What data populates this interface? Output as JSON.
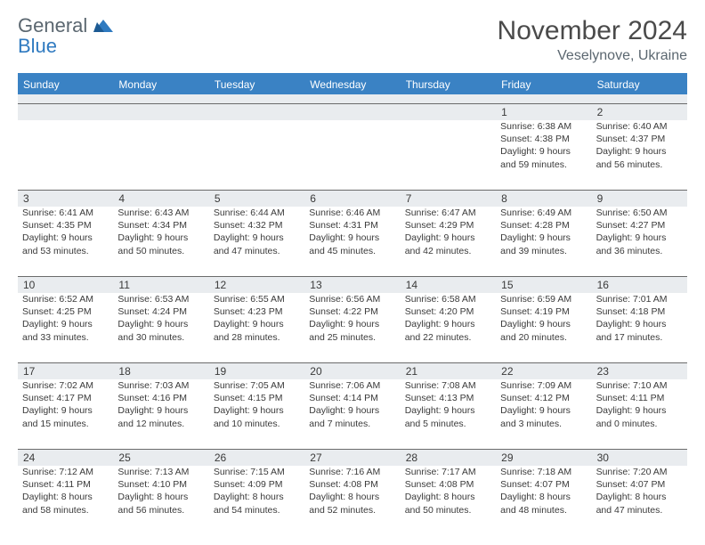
{
  "logo": {
    "word1": "General",
    "word2": "Blue"
  },
  "title": "November 2024",
  "location": "Veselynove, Ukraine",
  "weekdays": [
    "Sunday",
    "Monday",
    "Tuesday",
    "Wednesday",
    "Thursday",
    "Friday",
    "Saturday"
  ],
  "colors": {
    "header_bg": "#3a82c4",
    "daynum_bg": "#e9ecef",
    "text": "#3a3a3a",
    "logo_gray": "#5b6770",
    "logo_blue": "#2f7ac0"
  },
  "weeks": [
    [
      {
        "n": "",
        "lines": []
      },
      {
        "n": "",
        "lines": []
      },
      {
        "n": "",
        "lines": []
      },
      {
        "n": "",
        "lines": []
      },
      {
        "n": "",
        "lines": []
      },
      {
        "n": "1",
        "lines": [
          "Sunrise: 6:38 AM",
          "Sunset: 4:38 PM",
          "Daylight: 9 hours",
          "and 59 minutes."
        ]
      },
      {
        "n": "2",
        "lines": [
          "Sunrise: 6:40 AM",
          "Sunset: 4:37 PM",
          "Daylight: 9 hours",
          "and 56 minutes."
        ]
      }
    ],
    [
      {
        "n": "3",
        "lines": [
          "Sunrise: 6:41 AM",
          "Sunset: 4:35 PM",
          "Daylight: 9 hours",
          "and 53 minutes."
        ]
      },
      {
        "n": "4",
        "lines": [
          "Sunrise: 6:43 AM",
          "Sunset: 4:34 PM",
          "Daylight: 9 hours",
          "and 50 minutes."
        ]
      },
      {
        "n": "5",
        "lines": [
          "Sunrise: 6:44 AM",
          "Sunset: 4:32 PM",
          "Daylight: 9 hours",
          "and 47 minutes."
        ]
      },
      {
        "n": "6",
        "lines": [
          "Sunrise: 6:46 AM",
          "Sunset: 4:31 PM",
          "Daylight: 9 hours",
          "and 45 minutes."
        ]
      },
      {
        "n": "7",
        "lines": [
          "Sunrise: 6:47 AM",
          "Sunset: 4:29 PM",
          "Daylight: 9 hours",
          "and 42 minutes."
        ]
      },
      {
        "n": "8",
        "lines": [
          "Sunrise: 6:49 AM",
          "Sunset: 4:28 PM",
          "Daylight: 9 hours",
          "and 39 minutes."
        ]
      },
      {
        "n": "9",
        "lines": [
          "Sunrise: 6:50 AM",
          "Sunset: 4:27 PM",
          "Daylight: 9 hours",
          "and 36 minutes."
        ]
      }
    ],
    [
      {
        "n": "10",
        "lines": [
          "Sunrise: 6:52 AM",
          "Sunset: 4:25 PM",
          "Daylight: 9 hours",
          "and 33 minutes."
        ]
      },
      {
        "n": "11",
        "lines": [
          "Sunrise: 6:53 AM",
          "Sunset: 4:24 PM",
          "Daylight: 9 hours",
          "and 30 minutes."
        ]
      },
      {
        "n": "12",
        "lines": [
          "Sunrise: 6:55 AM",
          "Sunset: 4:23 PM",
          "Daylight: 9 hours",
          "and 28 minutes."
        ]
      },
      {
        "n": "13",
        "lines": [
          "Sunrise: 6:56 AM",
          "Sunset: 4:22 PM",
          "Daylight: 9 hours",
          "and 25 minutes."
        ]
      },
      {
        "n": "14",
        "lines": [
          "Sunrise: 6:58 AM",
          "Sunset: 4:20 PM",
          "Daylight: 9 hours",
          "and 22 minutes."
        ]
      },
      {
        "n": "15",
        "lines": [
          "Sunrise: 6:59 AM",
          "Sunset: 4:19 PM",
          "Daylight: 9 hours",
          "and 20 minutes."
        ]
      },
      {
        "n": "16",
        "lines": [
          "Sunrise: 7:01 AM",
          "Sunset: 4:18 PM",
          "Daylight: 9 hours",
          "and 17 minutes."
        ]
      }
    ],
    [
      {
        "n": "17",
        "lines": [
          "Sunrise: 7:02 AM",
          "Sunset: 4:17 PM",
          "Daylight: 9 hours",
          "and 15 minutes."
        ]
      },
      {
        "n": "18",
        "lines": [
          "Sunrise: 7:03 AM",
          "Sunset: 4:16 PM",
          "Daylight: 9 hours",
          "and 12 minutes."
        ]
      },
      {
        "n": "19",
        "lines": [
          "Sunrise: 7:05 AM",
          "Sunset: 4:15 PM",
          "Daylight: 9 hours",
          "and 10 minutes."
        ]
      },
      {
        "n": "20",
        "lines": [
          "Sunrise: 7:06 AM",
          "Sunset: 4:14 PM",
          "Daylight: 9 hours",
          "and 7 minutes."
        ]
      },
      {
        "n": "21",
        "lines": [
          "Sunrise: 7:08 AM",
          "Sunset: 4:13 PM",
          "Daylight: 9 hours",
          "and 5 minutes."
        ]
      },
      {
        "n": "22",
        "lines": [
          "Sunrise: 7:09 AM",
          "Sunset: 4:12 PM",
          "Daylight: 9 hours",
          "and 3 minutes."
        ]
      },
      {
        "n": "23",
        "lines": [
          "Sunrise: 7:10 AM",
          "Sunset: 4:11 PM",
          "Daylight: 9 hours",
          "and 0 minutes."
        ]
      }
    ],
    [
      {
        "n": "24",
        "lines": [
          "Sunrise: 7:12 AM",
          "Sunset: 4:11 PM",
          "Daylight: 8 hours",
          "and 58 minutes."
        ]
      },
      {
        "n": "25",
        "lines": [
          "Sunrise: 7:13 AM",
          "Sunset: 4:10 PM",
          "Daylight: 8 hours",
          "and 56 minutes."
        ]
      },
      {
        "n": "26",
        "lines": [
          "Sunrise: 7:15 AM",
          "Sunset: 4:09 PM",
          "Daylight: 8 hours",
          "and 54 minutes."
        ]
      },
      {
        "n": "27",
        "lines": [
          "Sunrise: 7:16 AM",
          "Sunset: 4:08 PM",
          "Daylight: 8 hours",
          "and 52 minutes."
        ]
      },
      {
        "n": "28",
        "lines": [
          "Sunrise: 7:17 AM",
          "Sunset: 4:08 PM",
          "Daylight: 8 hours",
          "and 50 minutes."
        ]
      },
      {
        "n": "29",
        "lines": [
          "Sunrise: 7:18 AM",
          "Sunset: 4:07 PM",
          "Daylight: 8 hours",
          "and 48 minutes."
        ]
      },
      {
        "n": "30",
        "lines": [
          "Sunrise: 7:20 AM",
          "Sunset: 4:07 PM",
          "Daylight: 8 hours",
          "and 47 minutes."
        ]
      }
    ]
  ]
}
